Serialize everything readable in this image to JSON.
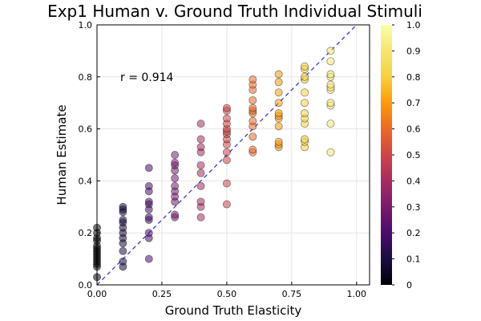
{
  "chart_data": {
    "type": "scatter",
    "title": "Exp1 Human v. Ground Truth Individual Stimuli",
    "xlabel": "Ground Truth Elasticity",
    "ylabel": "Human Estimate",
    "xlim": [
      0.0,
      1.05
    ],
    "ylim": [
      0.0,
      1.0
    ],
    "x_ticks": [
      0.0,
      0.25,
      0.5,
      0.75,
      1.0
    ],
    "x_tick_labels": [
      "0.00",
      "0.25",
      "0.50",
      "0.75",
      "1.00"
    ],
    "y_ticks": [
      0.0,
      0.2,
      0.4,
      0.6,
      0.8,
      1.0
    ],
    "y_tick_labels": [
      "0.0",
      "0.2",
      "0.4",
      "0.6",
      "0.8",
      "1.0"
    ],
    "grid": true,
    "annotation": "r = 0.914",
    "reference_line": {
      "style": "dashed",
      "color": "#2a2ad6",
      "from": [
        0,
        0
      ],
      "to": [
        1,
        1
      ]
    },
    "colorbar": {
      "colormap": "inferno",
      "range": [
        0.0,
        1.0
      ],
      "ticks": [
        0.0,
        0.1,
        0.2,
        0.3,
        0.4,
        0.5,
        0.6,
        0.7,
        0.8,
        0.9,
        1.0
      ],
      "tick_labels": [
        "0",
        "0.1",
        "0.2",
        "0.3",
        "0.4",
        "0.5",
        "0.6",
        "0.7",
        "0.8",
        "0.9",
        "1.0"
      ]
    },
    "series": [
      {
        "x": 0.0,
        "values": [
          0.03,
          0.07,
          0.08,
          0.09,
          0.1,
          0.11,
          0.12,
          0.13,
          0.14,
          0.15,
          0.17,
          0.18,
          0.2,
          0.22
        ]
      },
      {
        "x": 0.1,
        "values": [
          0.07,
          0.09,
          0.13,
          0.16,
          0.18,
          0.2,
          0.22,
          0.24,
          0.25,
          0.28,
          0.29,
          0.3
        ]
      },
      {
        "x": 0.2,
        "values": [
          0.1,
          0.18,
          0.2,
          0.25,
          0.26,
          0.29,
          0.31,
          0.32,
          0.36,
          0.38,
          0.45
        ]
      },
      {
        "x": 0.3,
        "values": [
          0.26,
          0.27,
          0.32,
          0.34,
          0.36,
          0.38,
          0.41,
          0.44,
          0.46,
          0.47,
          0.5
        ]
      },
      {
        "x": 0.4,
        "values": [
          0.26,
          0.3,
          0.32,
          0.38,
          0.43,
          0.46,
          0.51,
          0.53,
          0.56,
          0.62
        ]
      },
      {
        "x": 0.5,
        "values": [
          0.31,
          0.39,
          0.48,
          0.51,
          0.54,
          0.56,
          0.58,
          0.59,
          0.6,
          0.62,
          0.64,
          0.67,
          0.68
        ]
      },
      {
        "x": 0.6,
        "values": [
          0.51,
          0.52,
          0.57,
          0.61,
          0.63,
          0.66,
          0.67,
          0.68,
          0.71,
          0.75,
          0.77,
          0.79
        ]
      },
      {
        "x": 0.7,
        "values": [
          0.53,
          0.54,
          0.55,
          0.61,
          0.64,
          0.65,
          0.66,
          0.7,
          0.74,
          0.78,
          0.81
        ]
      },
      {
        "x": 0.8,
        "values": [
          0.53,
          0.55,
          0.56,
          0.62,
          0.64,
          0.66,
          0.7,
          0.74,
          0.79,
          0.8,
          0.83,
          0.84
        ]
      },
      {
        "x": 0.9,
        "values": [
          0.51,
          0.62,
          0.69,
          0.7,
          0.75,
          0.76,
          0.77,
          0.8,
          0.81,
          0.86,
          0.9
        ]
      }
    ]
  }
}
